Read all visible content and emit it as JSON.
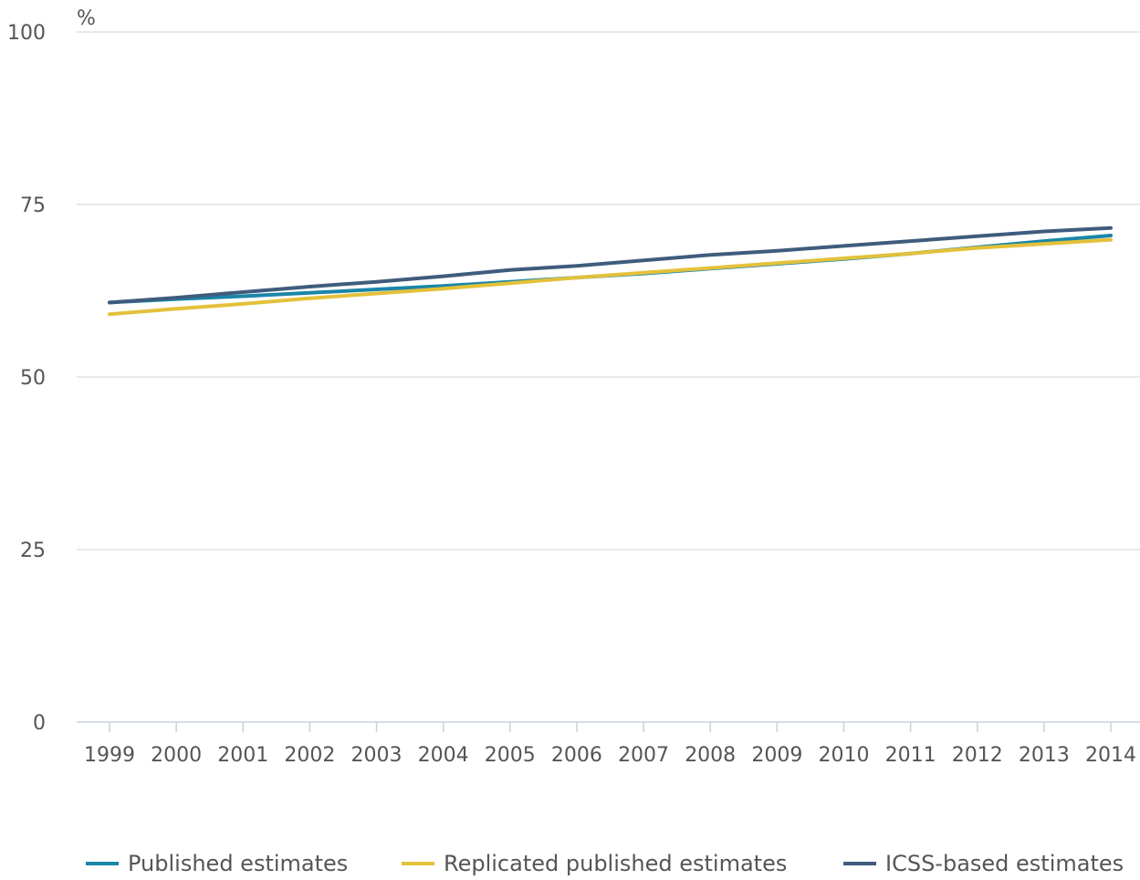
{
  "chart_data": {
    "type": "line",
    "title": "",
    "unit_label": "%",
    "ylim": [
      0,
      100
    ],
    "yticks": [
      "0",
      "25",
      "50",
      "75",
      "100"
    ],
    "categories": [
      "1999",
      "2000",
      "2001",
      "2002",
      "2003",
      "2004",
      "2005",
      "2006",
      "2007",
      "2008",
      "2009",
      "2010",
      "2011",
      "2012",
      "2013",
      "2014"
    ],
    "series": [
      {
        "name": "Published estimates",
        "color": "#1a86a8",
        "values": [
          60.8,
          61.3,
          61.7,
          62.2,
          62.7,
          63.2,
          63.8,
          64.4,
          65.0,
          65.7,
          66.4,
          67.1,
          67.9,
          68.8,
          69.7,
          70.5
        ]
      },
      {
        "name": "Replicated published estimates",
        "color": "#e3c13b",
        "values": [
          59.1,
          59.9,
          60.6,
          61.4,
          62.1,
          62.8,
          63.6,
          64.4,
          65.1,
          65.8,
          66.5,
          67.2,
          67.9,
          68.7,
          69.3,
          69.9
        ]
      },
      {
        "name": "ICSS-based estimates",
        "color": "#3f5c7d",
        "values": [
          60.8,
          61.5,
          62.3,
          63.1,
          63.8,
          64.6,
          65.5,
          66.1,
          66.9,
          67.7,
          68.3,
          69.0,
          69.7,
          70.4,
          71.1,
          71.6
        ]
      }
    ],
    "grid": true,
    "legend_position": "bottom"
  }
}
